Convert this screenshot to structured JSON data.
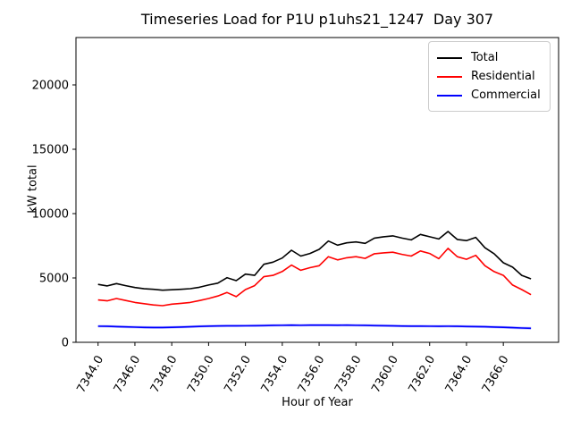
{
  "figure": {
    "title": "Timeseries Load for P1U p1uhs21_1247  Day 307",
    "xlabel": "Hour of Year",
    "ylabel": "kW total"
  },
  "legend": {
    "position": "upper right",
    "items": [
      {
        "label": "Total",
        "color": "#000000"
      },
      {
        "label": "Residential",
        "color": "#ff0000"
      },
      {
        "label": "Commercial",
        "color": "#0000ff"
      }
    ]
  },
  "colors": {
    "total": "#000000",
    "residential": "#ff0000",
    "commercial": "#0000ff",
    "commercial_glow": "#9090ff",
    "axes": "#000000",
    "legend_border": "#cccccc",
    "background": "#ffffff"
  },
  "chart_data": {
    "type": "line",
    "title": "Timeseries Load for P1U p1uhs21_1247  Day 307",
    "xlabel": "Hour of Year",
    "ylabel": "kW total",
    "xlim": [
      7342.8,
      7369.0
    ],
    "ylim": [
      0,
      23680
    ],
    "xtick_values": [
      7344,
      7346,
      7348,
      7350,
      7352,
      7354,
      7356,
      7358,
      7360,
      7362,
      7364,
      7366
    ],
    "xtick_labels": [
      "7344.0",
      "7346.0",
      "7348.0",
      "7350.0",
      "7352.0",
      "7354.0",
      "7356.0",
      "7358.0",
      "7360.0",
      "7362.0",
      "7364.0",
      "7366.0"
    ],
    "ytick_values": [
      0,
      5000,
      10000,
      15000,
      20000
    ],
    "ytick_labels": [
      "0",
      "5000",
      "10000",
      "15000",
      "20000"
    ],
    "grid": false,
    "legend_position": "upper right",
    "x": [
      7344.0,
      7344.5,
      7345.0,
      7345.5,
      7346.0,
      7346.5,
      7347.0,
      7347.5,
      7348.0,
      7348.5,
      7349.0,
      7349.5,
      7350.0,
      7350.5,
      7351.0,
      7351.5,
      7352.0,
      7352.5,
      7353.0,
      7353.5,
      7354.0,
      7354.5,
      7355.0,
      7355.5,
      7356.0,
      7356.5,
      7357.0,
      7357.5,
      7358.0,
      7358.5,
      7359.0,
      7359.5,
      7360.0,
      7360.5,
      7361.0,
      7361.5,
      7362.0,
      7362.5,
      7363.0,
      7363.5,
      7364.0,
      7364.5,
      7365.0,
      7365.5,
      7366.0,
      7366.5,
      7367.0,
      7367.5
    ],
    "series": [
      {
        "name": "Total",
        "color": "#000000",
        "values": [
          4500,
          4380,
          4560,
          4400,
          4260,
          4160,
          4120,
          4050,
          4080,
          4120,
          4170,
          4280,
          4450,
          4600,
          5020,
          4790,
          5300,
          5200,
          6060,
          6230,
          6550,
          7150,
          6700,
          6900,
          7220,
          7870,
          7550,
          7730,
          7800,
          7690,
          8100,
          8200,
          8270,
          8100,
          7960,
          8380,
          8200,
          8030,
          8610,
          7990,
          7900,
          8150,
          7350,
          6880,
          6180,
          5840,
          5200,
          4930
        ]
      },
      {
        "name": "Residential",
        "color": "#ff0000",
        "values": [
          3290,
          3220,
          3400,
          3250,
          3100,
          3000,
          2900,
          2845,
          2965,
          3030,
          3100,
          3240,
          3400,
          3600,
          3870,
          3550,
          4100,
          4400,
          5100,
          5200,
          5500,
          6000,
          5600,
          5800,
          5950,
          6650,
          6400,
          6570,
          6650,
          6520,
          6880,
          6950,
          7000,
          6830,
          6700,
          7100,
          6900,
          6500,
          7300,
          6650,
          6450,
          6760,
          5950,
          5490,
          5200,
          4450,
          4100,
          3700
        ]
      },
      {
        "name": "Commercial",
        "color": "#0000ff",
        "glow": "#9090ff",
        "values": [
          1250,
          1240,
          1220,
          1200,
          1180,
          1160,
          1150,
          1155,
          1170,
          1190,
          1210,
          1235,
          1260,
          1270,
          1280,
          1275,
          1285,
          1290,
          1300,
          1310,
          1320,
          1330,
          1320,
          1330,
          1330,
          1330,
          1325,
          1330,
          1320,
          1310,
          1300,
          1290,
          1280,
          1265,
          1255,
          1260,
          1250,
          1245,
          1250,
          1240,
          1230,
          1220,
          1210,
          1190,
          1170,
          1140,
          1110,
          1090
        ]
      }
    ]
  }
}
